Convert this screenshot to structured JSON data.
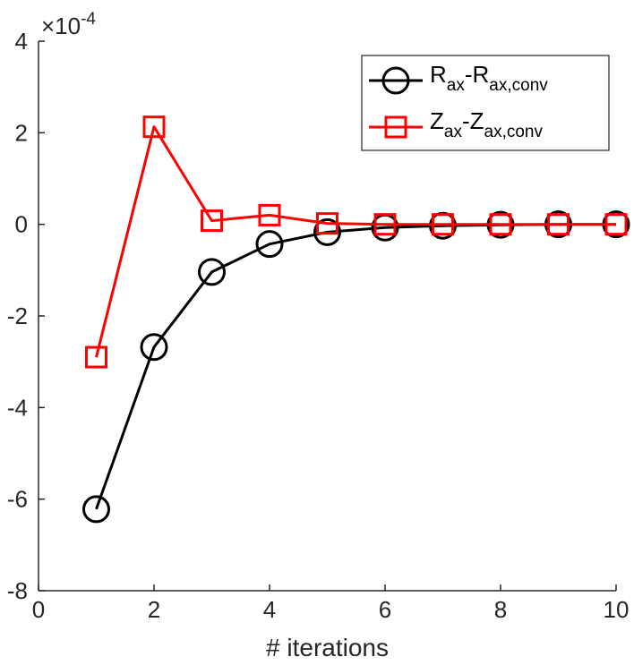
{
  "chart_data": {
    "type": "line",
    "xlabel": "# iterations",
    "ylabel": "",
    "xlim": [
      0,
      10
    ],
    "ylim": [
      -8,
      4
    ],
    "xticks": [
      0,
      2,
      4,
      6,
      8,
      10
    ],
    "yticks": [
      -8,
      -6,
      -4,
      -2,
      0,
      2,
      4
    ],
    "y_multiplier": {
      "base": "×10",
      "exponent": "-4"
    },
    "grid": false,
    "legend_position": "top-right",
    "series": [
      {
        "name_main": "R",
        "name_sub1": "ax",
        "name_mid": "-R",
        "name_sub2": "ax,conv",
        "color": "#000000",
        "marker": "circle",
        "x": [
          1,
          2,
          3,
          4,
          5,
          6,
          7,
          8,
          9,
          10
        ],
        "y": [
          -6.22,
          -2.68,
          -1.04,
          -0.43,
          -0.17,
          -0.07,
          -0.03,
          -0.01,
          0.0,
          0.0
        ]
      },
      {
        "name_main": "Z",
        "name_sub1": "ax",
        "name_mid": "-Z",
        "name_sub2": "ax,conv",
        "color": "#ff0000",
        "marker": "square",
        "x": [
          1,
          2,
          3,
          4,
          5,
          6,
          7,
          8,
          9,
          10
        ],
        "y": [
          -2.9,
          2.13,
          0.08,
          0.2,
          0.02,
          0.0,
          0.0,
          0.0,
          0.0,
          0.0
        ]
      }
    ]
  }
}
